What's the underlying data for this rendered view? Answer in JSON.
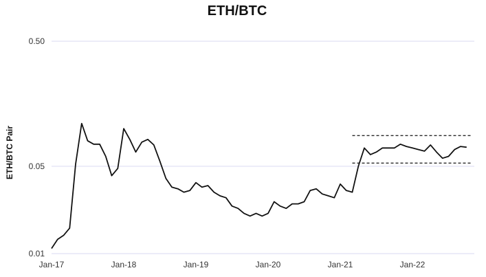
{
  "chart_data": {
    "type": "line",
    "title": "ETH/BTC",
    "ylabel": "ETH/BTC Pair",
    "xlabel": "",
    "y_scale": "log",
    "ylim": [
      0.01,
      0.5
    ],
    "y_ticks": [
      {
        "value": 0.5,
        "label": "0.50"
      },
      {
        "value": 0.05,
        "label": "0.05"
      },
      {
        "value": 0.01,
        "label": "0.01"
      }
    ],
    "x_ticks": [
      "Jan-17",
      "Jan-18",
      "Jan-19",
      "Jan-20",
      "Jan-21",
      "Jan-22"
    ],
    "grid": "horizontal",
    "series": [
      {
        "color": "#111111",
        "x": [
          "2017-01",
          "2017-02",
          "2017-03",
          "2017-04",
          "2017-05",
          "2017-06",
          "2017-07",
          "2017-08",
          "2017-09",
          "2017-10",
          "2017-11",
          "2017-12",
          "2018-01",
          "2018-02",
          "2018-03",
          "2018-04",
          "2018-05",
          "2018-06",
          "2018-07",
          "2018-08",
          "2018-09",
          "2018-10",
          "2018-11",
          "2018-12",
          "2019-01",
          "2019-02",
          "2019-03",
          "2019-04",
          "2019-05",
          "2019-06",
          "2019-07",
          "2019-08",
          "2019-09",
          "2019-10",
          "2019-11",
          "2019-12",
          "2020-01",
          "2020-02",
          "2020-03",
          "2020-04",
          "2020-05",
          "2020-06",
          "2020-07",
          "2020-08",
          "2020-09",
          "2020-10",
          "2020-11",
          "2020-12",
          "2021-01",
          "2021-02",
          "2021-03",
          "2021-04",
          "2021-05",
          "2021-06",
          "2021-07",
          "2021-08",
          "2021-09",
          "2021-10",
          "2021-11",
          "2021-12",
          "2022-01",
          "2022-02",
          "2022-03",
          "2022-04",
          "2022-05",
          "2022-06",
          "2022-07",
          "2022-08",
          "2022-09",
          "2022-10"
        ],
        "y": [
          0.011,
          0.013,
          0.014,
          0.016,
          0.052,
          0.11,
          0.08,
          0.075,
          0.075,
          0.06,
          0.042,
          0.048,
          0.1,
          0.082,
          0.065,
          0.078,
          0.082,
          0.074,
          0.055,
          0.04,
          0.034,
          0.033,
          0.031,
          0.032,
          0.037,
          0.034,
          0.035,
          0.031,
          0.029,
          0.028,
          0.024,
          0.023,
          0.021,
          0.02,
          0.021,
          0.02,
          0.021,
          0.026,
          0.024,
          0.023,
          0.025,
          0.025,
          0.026,
          0.032,
          0.033,
          0.03,
          0.029,
          0.028,
          0.036,
          0.032,
          0.031,
          0.05,
          0.07,
          0.062,
          0.065,
          0.07,
          0.07,
          0.07,
          0.075,
          0.072,
          0.07,
          0.068,
          0.066,
          0.074,
          0.065,
          0.058,
          0.06,
          0.068,
          0.072,
          0.071
        ]
      }
    ],
    "annotations": [
      {
        "type": "dashed-line",
        "y": 0.088,
        "x_start": "2021-03",
        "x_end": "2022-11"
      },
      {
        "type": "dashed-line",
        "y": 0.053,
        "x_start": "2021-03",
        "x_end": "2022-11"
      }
    ]
  }
}
